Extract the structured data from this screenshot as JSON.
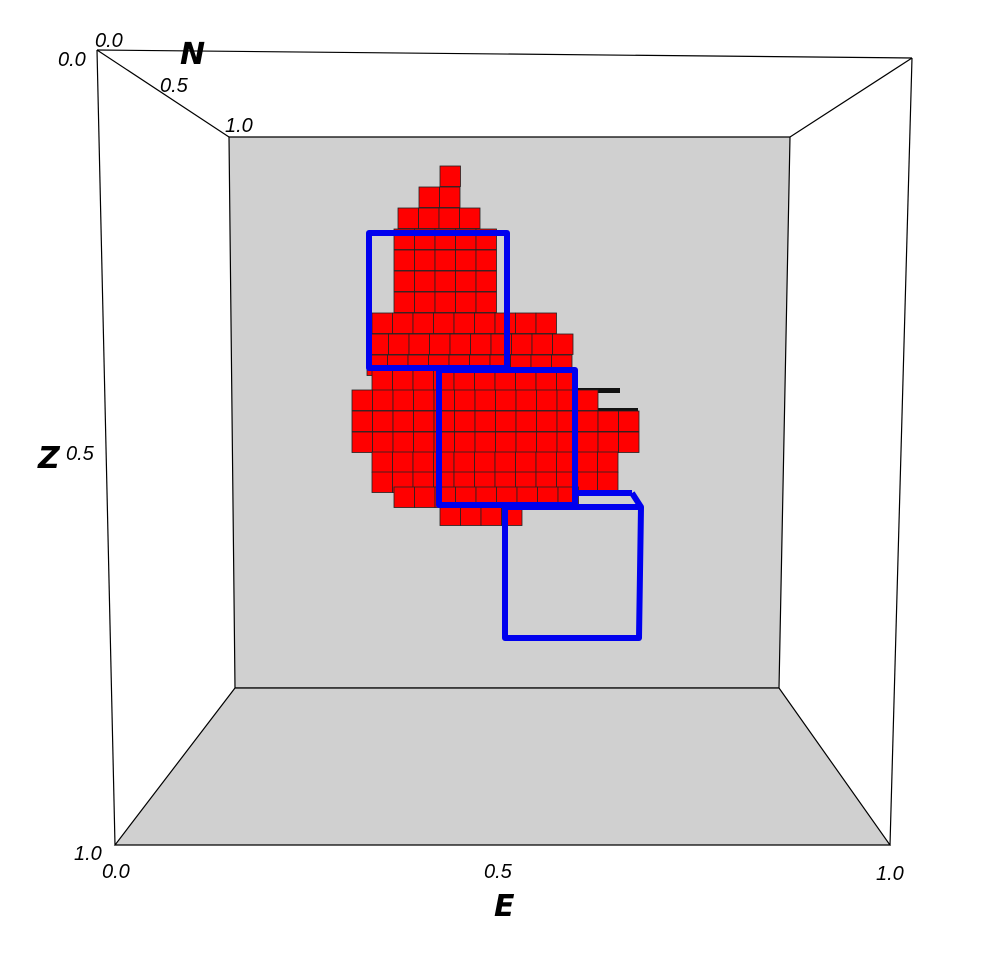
{
  "axes": {
    "n": {
      "title": "N",
      "ticks": [
        "0.0",
        "0.5",
        "1.0"
      ]
    },
    "e": {
      "title": "E",
      "ticks": [
        "0.0",
        "0.5",
        "1.0"
      ]
    },
    "z": {
      "title": "Z",
      "ticks": [
        "0.0",
        "0.5",
        "1.0"
      ]
    }
  },
  "colors": {
    "background": "#ffffff",
    "wall": "#d0d0d0",
    "edge": "#000000",
    "voxel": "#ff0000",
    "voxel_edge": "#222222",
    "outline": "#0000ee"
  }
}
